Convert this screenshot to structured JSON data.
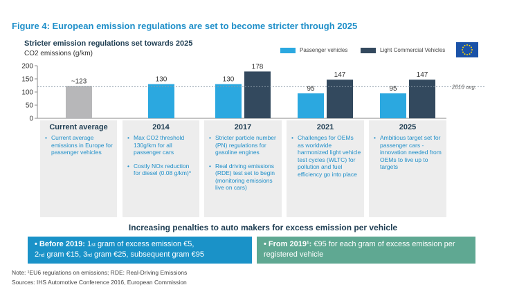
{
  "figure_title": "Figure 4: European emission regulations are set to become stricter through 2025",
  "subtitle": "Stricter emission regulations set towards 2025",
  "y_unit": "CO2 emissions (g/km)",
  "legend": {
    "passenger": "Passenger vehicles",
    "lcv": "Light Commercial Vehicles"
  },
  "eu_flag_icon": "eu-flag-icon",
  "colors": {
    "passenger": "#2ba8e0",
    "lcv": "#33495e",
    "current": "#b7b7b9",
    "title": "#1f8fc9",
    "dark": "#1e3d52",
    "box_blue": "#1a92c8",
    "box_green": "#5fa892"
  },
  "chart_data": {
    "type": "bar",
    "categories": [
      "Current average",
      "2014",
      "2017",
      "2021",
      "2025"
    ],
    "ylabel": "CO2 emissions (g/km)",
    "ylim": [
      0,
      200
    ],
    "yticks": [
      0,
      50,
      100,
      150,
      200
    ],
    "series": [
      {
        "name": "Passenger vehicles",
        "values": [
          123,
          130,
          130,
          95,
          95
        ]
      },
      {
        "name": "Light Commercial Vehicles",
        "values": [
          null,
          null,
          178,
          147,
          147
        ]
      }
    ],
    "data_labels": [
      {
        "category": "Current average",
        "series": "Passenger vehicles",
        "text": "~123"
      },
      {
        "category": "2014",
        "series": "Passenger vehicles",
        "text": "130"
      },
      {
        "category": "2017",
        "series": "Passenger vehicles",
        "text": "130"
      },
      {
        "category": "2017",
        "series": "Light Commercial Vehicles",
        "text": "178"
      },
      {
        "category": "2021",
        "series": "Passenger vehicles",
        "text": "95"
      },
      {
        "category": "2021",
        "series": "Light Commercial Vehicles",
        "text": "147"
      },
      {
        "category": "2025",
        "series": "Passenger vehicles",
        "text": "95"
      },
      {
        "category": "2025",
        "series": "Light Commercial Vehicles",
        "text": "147"
      }
    ],
    "reference_line": {
      "value": 120,
      "label": "2016 avg."
    },
    "grid": false
  },
  "panels": [
    {
      "title": "Current average",
      "bullets": [
        "Current average emissions in Europe for passenger vehicles"
      ]
    },
    {
      "title": "2014",
      "bullets": [
        "Max CO2 threshold 130g/km for all passenger cars",
        "Costly NOx reduction for diesel (0.08 g/km)*"
      ]
    },
    {
      "title": "2017",
      "bullets": [
        "Stricter particle number (PN) regulations for gasoline engines",
        "Real driving emissions (RDE) test set to begin (monitoring emissions live on cars)"
      ]
    },
    {
      "title": "2021",
      "bullets": [
        "Challenges for OEMs as worldwide harmonized light vehicle test cycles (WLTC) for pollution and fuel efficiency go into place"
      ]
    },
    {
      "title": "2025",
      "bullets": [
        "Ambitious target set for passenger cars - innovation needed from OEMs to live up to targets"
      ]
    }
  ],
  "penalty_title": "Increasing penalties to auto makers for excess emission per vehicle",
  "penalty_before": {
    "bullet": "•",
    "label": "Before 2019:",
    "p1": "1",
    "s1": "st",
    "t1": " gram of excess emission €5,",
    "p2": "2",
    "s2": "nd",
    "t2": " gram €15, ",
    "p3": "3",
    "s3": "rd",
    "t3": " gram €25, subsequent gram €95"
  },
  "penalty_after": {
    "bullet": "•",
    "label": "From 2019¹:",
    "t1": " €95 for each gram of excess emission per registered vehicle"
  },
  "note": "Note: ¹EU6 regulations on emissions; RDE: Real-Driving Emissions",
  "sources": "Sources: IHS Automotive Conference 2016, European Commission"
}
